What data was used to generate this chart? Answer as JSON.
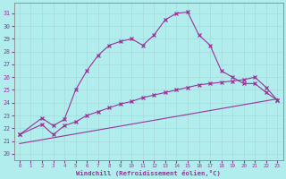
{
  "bg_color": "#b2eded",
  "grid_color": "#c8e8e8",
  "line_color": "#993399",
  "xlabel": "Windchill (Refroidissement éolien,°C)",
  "x_ticks": [
    0,
    1,
    2,
    3,
    4,
    5,
    6,
    7,
    8,
    9,
    10,
    11,
    12,
    13,
    14,
    15,
    16,
    17,
    18,
    19,
    20,
    21,
    22,
    23
  ],
  "y_ticks": [
    20,
    21,
    22,
    23,
    24,
    25,
    26,
    27,
    28,
    29,
    30,
    31
  ],
  "xlim": [
    -0.5,
    23.5
  ],
  "ylim": [
    19.5,
    31.8
  ],
  "line1_x": [
    0,
    2,
    3,
    4,
    5,
    6,
    7,
    8,
    9,
    10,
    11,
    12,
    13,
    14,
    15,
    16,
    17,
    18,
    19,
    20,
    21,
    22,
    23
  ],
  "line1_y": [
    21.5,
    22.8,
    22.2,
    22.7,
    25.0,
    26.5,
    27.7,
    28.5,
    28.8,
    29.0,
    28.5,
    29.3,
    30.5,
    31.0,
    31.1,
    29.3,
    28.5,
    26.5,
    26.0,
    25.5,
    25.5,
    24.8,
    24.2
  ],
  "line2_x": [
    0,
    2,
    3,
    4,
    5,
    6,
    7,
    8,
    9,
    10,
    11,
    12,
    13,
    14,
    15,
    16,
    17,
    18,
    19,
    20,
    21,
    22,
    23
  ],
  "line2_y": [
    21.5,
    22.3,
    21.5,
    22.2,
    22.5,
    23.0,
    23.3,
    23.6,
    23.9,
    24.1,
    24.4,
    24.6,
    24.8,
    25.0,
    25.2,
    25.4,
    25.5,
    25.6,
    25.7,
    25.8,
    26.0,
    25.2,
    24.2
  ],
  "line3_x": [
    0,
    23
  ],
  "line3_y": [
    20.8,
    24.3
  ]
}
